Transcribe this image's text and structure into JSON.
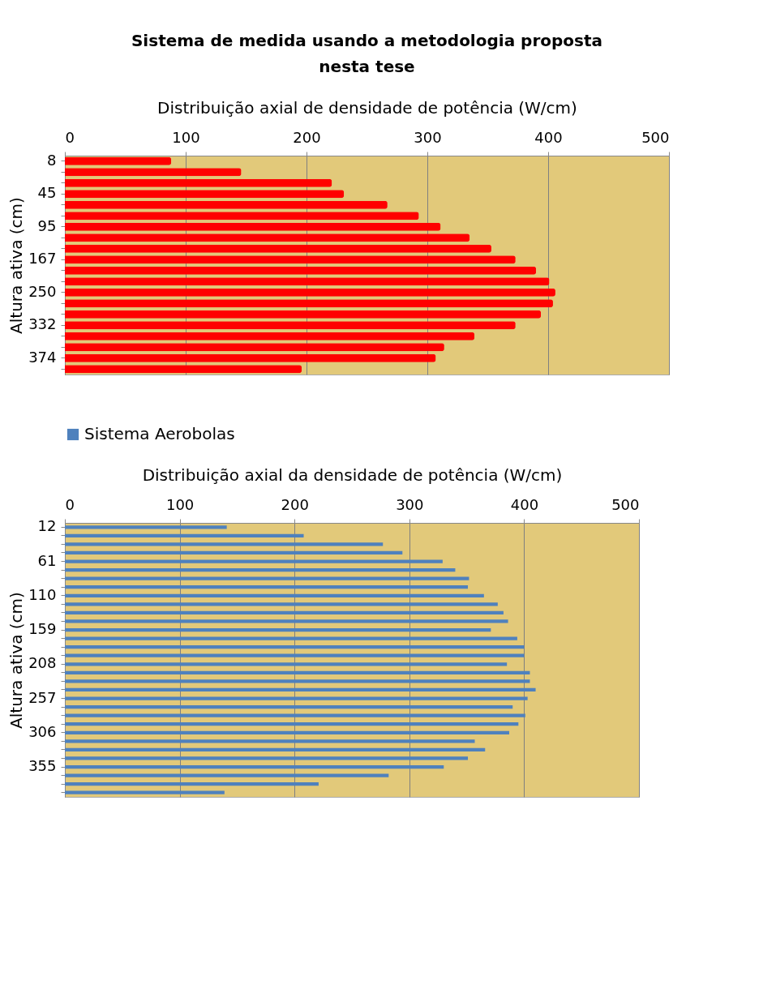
{
  "chart_data": [
    {
      "type": "bar",
      "orientation": "horizontal",
      "title": "Sistema de medida usando a metodologia proposta nesta tese",
      "xlabel": "Distribuição axial de densidade de potência (W/cm)",
      "ylabel": "Altura  ativa (cm)",
      "categories": [
        "8",
        null,
        null,
        "45",
        null,
        null,
        "95",
        null,
        null,
        "167",
        null,
        null,
        "250",
        null,
        null,
        "332",
        null,
        null,
        "374",
        null
      ],
      "values": [
        88,
        146,
        221,
        231,
        267,
        293,
        311,
        335,
        353,
        373,
        390,
        401,
        406,
        404,
        394,
        373,
        339,
        314,
        307,
        196
      ],
      "color": "#ff0000",
      "xlim": [
        0,
        500
      ],
      "xticks": [
        0,
        100,
        200,
        300,
        400,
        500
      ],
      "grid": "x"
    },
    {
      "type": "bar",
      "orientation": "horizontal",
      "xlabel": "Distribuição axial da densidade de potência (W/cm)",
      "ylabel": "Altura ativa  (cm)",
      "categories": [
        "12",
        null,
        null,
        null,
        "61",
        null,
        null,
        null,
        "110",
        null,
        null,
        null,
        "159",
        null,
        null,
        null,
        "208",
        null,
        null,
        null,
        "257",
        null,
        null,
        null,
        "306",
        null,
        null,
        null,
        "355",
        null,
        null,
        null
      ],
      "series": [
        {
          "name": "Sistema Aerobolas",
          "color": "#4f81bd",
          "values": [
            141,
            208,
            277,
            294,
            329,
            340,
            352,
            351,
            365,
            377,
            382,
            386,
            371,
            394,
            400,
            400,
            385,
            405,
            405,
            410,
            403,
            390,
            401,
            395,
            387,
            357,
            366,
            351,
            330,
            282,
            221,
            139
          ]
        }
      ],
      "xlim": [
        0,
        500
      ],
      "xticks": [
        0,
        100,
        200,
        300,
        400,
        500
      ],
      "grid": "x",
      "legend": "top"
    }
  ]
}
